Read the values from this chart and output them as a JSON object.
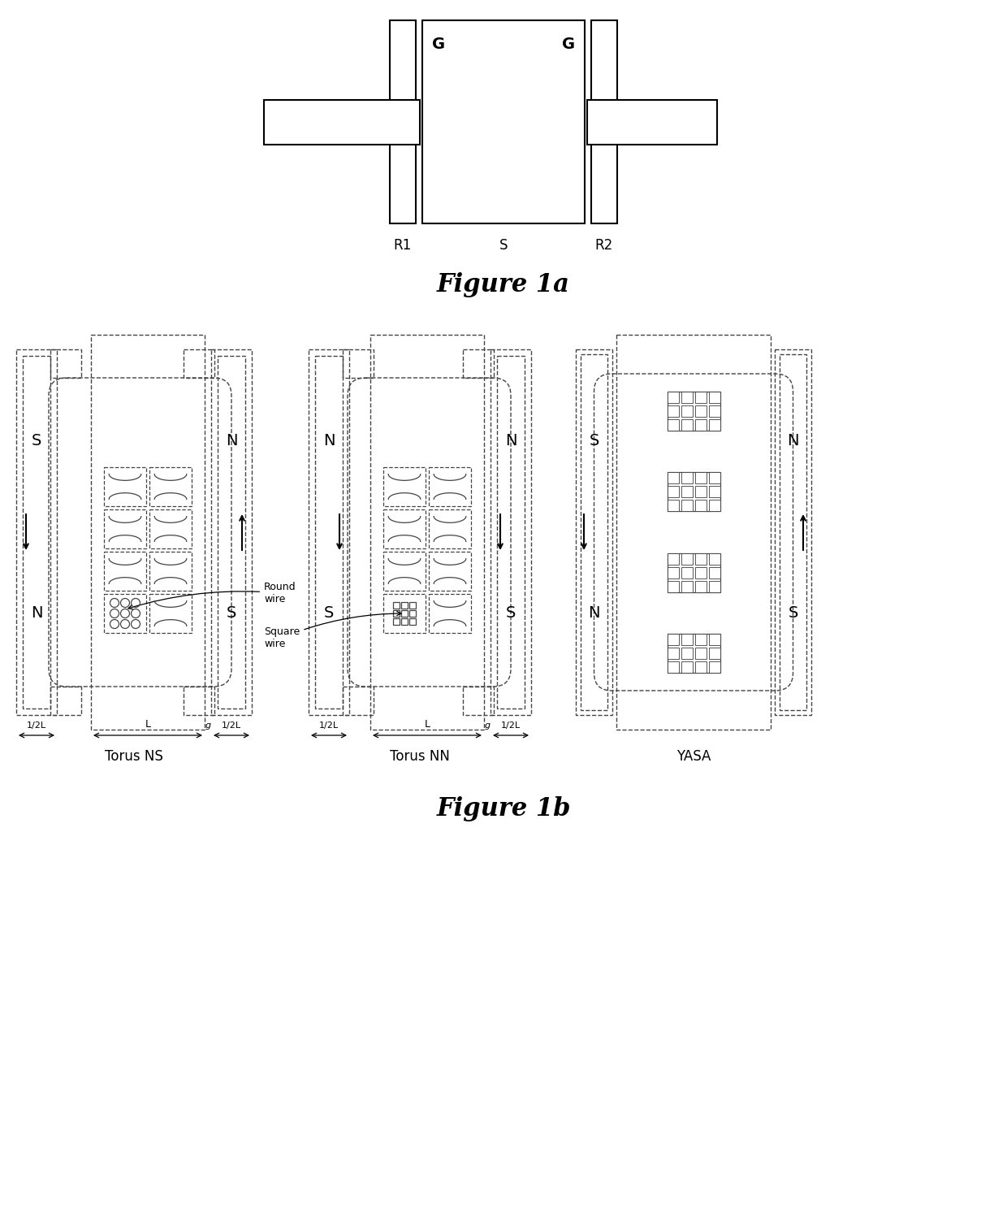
{
  "fig_width": 12.4,
  "fig_height": 15.04,
  "bg_color": "#ffffff",
  "lc": "#000000",
  "dc": "#444444",
  "fig1a_title": "Figure 1a",
  "fig1b_title": "Figure 1b",
  "torus_ns_label": "Torus NS",
  "torus_nn_label": "Torus NN",
  "yasa_label": "YASA"
}
